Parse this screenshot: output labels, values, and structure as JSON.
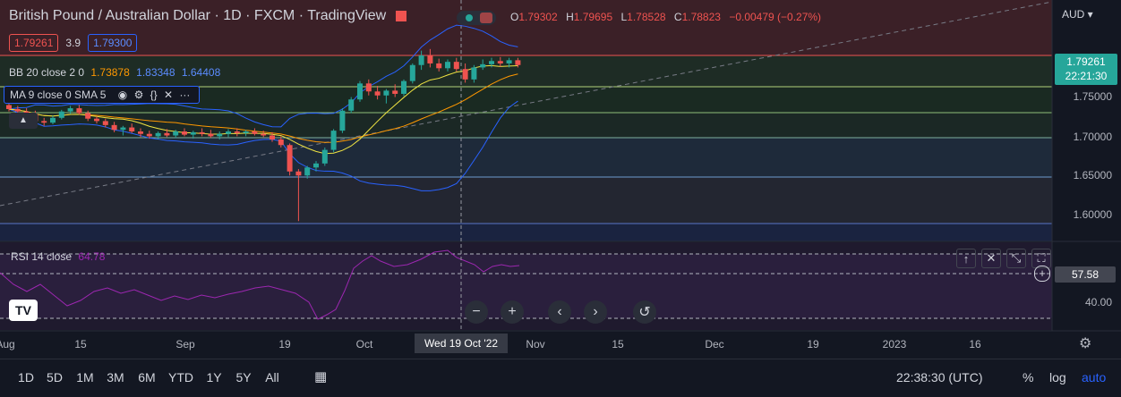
{
  "header": {
    "symbol": "British Pound / Australian Dollar",
    "interval": "1D",
    "exchange": "FXCM",
    "source": "TradingView",
    "o_label": "O",
    "o": "1.79302",
    "h_label": "H",
    "h": "1.79695",
    "l_label": "L",
    "l": "1.78528",
    "c_label": "C",
    "c": "1.78823",
    "change": "−0.00479 (−0.27%)"
  },
  "quote": {
    "sell": "1.79261",
    "spread": "3.9",
    "buy": "1.79300"
  },
  "indicators": {
    "bb_label": "BB 20 close 2 0",
    "bb_basis": "1.73878",
    "bb_upper": "1.83348",
    "bb_lower": "1.64408",
    "ma_label": "MA 9 close 0 SMA 5",
    "rsi_label": "RSI 14 close",
    "rsi_value": "64.78"
  },
  "price_scale": {
    "currency": "AUD",
    "ticks": [
      "1.75000",
      "1.70000",
      "1.65000",
      "1.60000"
    ],
    "current_price": "1.79261",
    "countdown": "22:21:30"
  },
  "rsi_scale": {
    "current": "57.58",
    "ticks": [
      "40.00"
    ]
  },
  "time_axis": {
    "labels": [
      "Aug",
      "15",
      "Sep",
      "19",
      "Oct",
      "Nov",
      "15",
      "Dec",
      "19",
      "2023",
      "16"
    ],
    "crosshair_label": "Wed 19 Oct '22"
  },
  "timeframes": [
    "1D",
    "5D",
    "1M",
    "3M",
    "6M",
    "YTD",
    "1Y",
    "5Y",
    "All"
  ],
  "bottom_right": {
    "clock": "22:38:30 (UTC)",
    "percent": "%",
    "log": "log",
    "auto": "auto"
  },
  "colors": {
    "up": "#26a69a",
    "down": "#ef5350",
    "ma": "#f0e442",
    "bb_basis": "#ff9800",
    "bb_band": "#2962ff",
    "rsi": "#9c27b0",
    "accent": "#2962ff"
  },
  "chart_data": {
    "type": "candlestick",
    "y_range": [
      1.58,
      1.82
    ],
    "series": [
      {
        "ohlc": [
          [
            1.738,
            1.741,
            1.73,
            1.733
          ],
          [
            1.733,
            1.737,
            1.728,
            1.73
          ],
          [
            1.73,
            1.734,
            1.724,
            1.727
          ],
          [
            1.727,
            1.731,
            1.715,
            1.718
          ],
          [
            1.718,
            1.722,
            1.712,
            1.716
          ],
          [
            1.716,
            1.725,
            1.714,
            1.722
          ],
          [
            1.722,
            1.732,
            1.72,
            1.73
          ],
          [
            1.73,
            1.737,
            1.727,
            1.734
          ],
          [
            1.734,
            1.738,
            1.726,
            1.728
          ],
          [
            1.728,
            1.731,
            1.718,
            1.721
          ],
          [
            1.721,
            1.724,
            1.715,
            1.718
          ],
          [
            1.718,
            1.721,
            1.71,
            1.713
          ],
          [
            1.713,
            1.717,
            1.704,
            1.707
          ],
          [
            1.707,
            1.712,
            1.7,
            1.71
          ],
          [
            1.71,
            1.715,
            1.703,
            1.705
          ],
          [
            1.705,
            1.709,
            1.698,
            1.702
          ],
          [
            1.702,
            1.706,
            1.696,
            1.699
          ],
          [
            1.699,
            1.705,
            1.695,
            1.703
          ],
          [
            1.703,
            1.708,
            1.698,
            1.7
          ],
          [
            1.7,
            1.707,
            1.697,
            1.705
          ],
          [
            1.705,
            1.709,
            1.699,
            1.701
          ],
          [
            1.701,
            1.706,
            1.696,
            1.704
          ],
          [
            1.704,
            1.709,
            1.699,
            1.702
          ],
          [
            1.702,
            1.707,
            1.697,
            1.699
          ],
          [
            1.699,
            1.705,
            1.695,
            1.702
          ],
          [
            1.702,
            1.708,
            1.698,
            1.705
          ],
          [
            1.705,
            1.709,
            1.699,
            1.703
          ],
          [
            1.703,
            1.707,
            1.699,
            1.705
          ],
          [
            1.705,
            1.709,
            1.7,
            1.702
          ],
          [
            1.702,
            1.706,
            1.698,
            1.7
          ],
          [
            1.7,
            1.704,
            1.692,
            1.695
          ],
          [
            1.695,
            1.699,
            1.685,
            1.688
          ],
          [
            1.688,
            1.69,
            1.65,
            1.655
          ],
          [
            1.655,
            1.658,
            1.593,
            1.65
          ],
          [
            1.65,
            1.662,
            1.646,
            1.66
          ],
          [
            1.66,
            1.668,
            1.655,
            1.665
          ],
          [
            1.665,
            1.685,
            1.662,
            1.682
          ],
          [
            1.682,
            1.708,
            1.679,
            1.706
          ],
          [
            1.706,
            1.734,
            1.703,
            1.731
          ],
          [
            1.731,
            1.748,
            1.728,
            1.745
          ],
          [
            1.745,
            1.768,
            1.742,
            1.765
          ],
          [
            1.765,
            1.77,
            1.75,
            1.755
          ],
          [
            1.755,
            1.762,
            1.745,
            1.75
          ],
          [
            1.75,
            1.758,
            1.74,
            1.756
          ],
          [
            1.756,
            1.764,
            1.748,
            1.752
          ],
          [
            1.752,
            1.77,
            1.749,
            1.768
          ],
          [
            1.768,
            1.79,
            1.765,
            1.788
          ],
          [
            1.788,
            1.806,
            1.782,
            1.8
          ],
          [
            1.8,
            1.808,
            1.785,
            1.79
          ],
          [
            1.79,
            1.796,
            1.78,
            1.784
          ],
          [
            1.784,
            1.795,
            1.78,
            1.792
          ],
          [
            1.792,
            1.797,
            1.78,
            1.783
          ],
          [
            1.783,
            1.79,
            1.766,
            1.77
          ],
          [
            1.77,
            1.788,
            1.766,
            1.785
          ],
          [
            1.785,
            1.795,
            1.782,
            1.789
          ],
          [
            1.789,
            1.797,
            1.785,
            1.793
          ],
          [
            1.793,
            1.798,
            1.786,
            1.79
          ],
          [
            1.79,
            1.797,
            1.785,
            1.794
          ],
          [
            1.794,
            1.797,
            1.785,
            1.788
          ]
        ]
      }
    ]
  }
}
